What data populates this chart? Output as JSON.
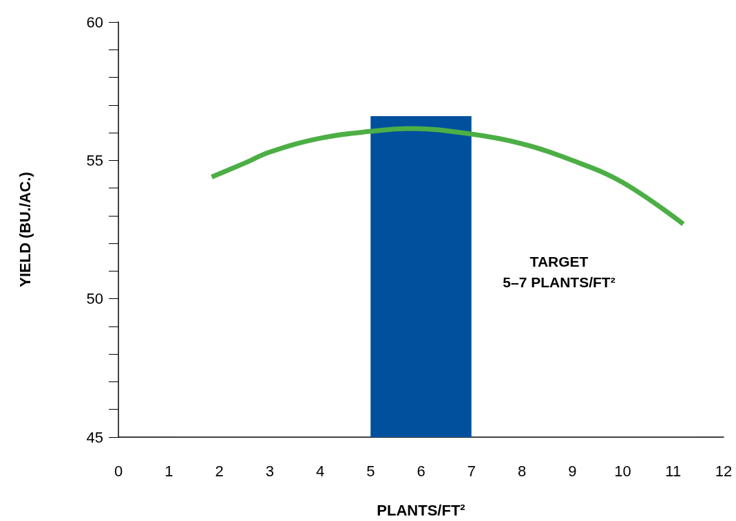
{
  "chart_data": {
    "type": "line",
    "xlabel": "PLANTS/FT²",
    "ylabel": "YIELD (BU./AC.)",
    "xlim": [
      0,
      12
    ],
    "xticks": [
      0,
      1,
      2,
      3,
      4,
      5,
      6,
      7,
      8,
      9,
      10,
      11,
      12
    ],
    "ylim": [
      45,
      60
    ],
    "yticks": [
      45,
      {
        "value": 46,
        "label": null
      },
      {
        "value": 47,
        "label": null
      },
      {
        "value": 48,
        "label": null
      },
      {
        "value": 49,
        "label": null
      },
      50,
      {
        "value": 51,
        "label": null
      },
      {
        "value": 52,
        "label": null
      },
      {
        "value": 53,
        "label": null
      },
      {
        "value": 54,
        "label": null
      },
      55,
      {
        "value": 56,
        "label": null
      },
      {
        "value": 57,
        "label": null
      },
      {
        "value": 58,
        "label": null
      },
      {
        "value": 59,
        "label": null
      },
      60
    ],
    "grid": false,
    "marker": "none",
    "series": [
      {
        "type": "histogram",
        "bins": [
          5,
          7
        ],
        "values": [
          56.6
        ],
        "color": "#00509e"
      },
      {
        "color": "#4caf45",
        "x": [
          1.85,
          2.5,
          3,
          4,
          5,
          5.8,
          7,
          8,
          9,
          10,
          11.2
        ],
        "values": [
          54.4,
          54.9,
          55.3,
          55.8,
          56.05,
          56.15,
          55.95,
          55.6,
          55.0,
          54.2,
          52.7
        ]
      }
    ],
    "annotations": [
      "TARGET\n5–7 PLANTS/FT²"
    ]
  }
}
